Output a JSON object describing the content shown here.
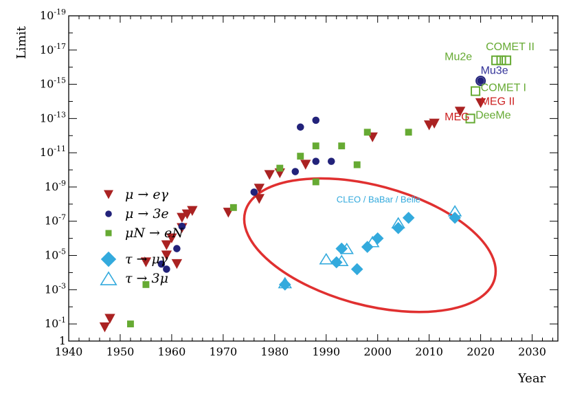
{
  "chart_data": {
    "type": "scatter",
    "title": "",
    "xlabel": "Year",
    "ylabel": "Limit",
    "xlim": [
      1940,
      2035
    ],
    "ylim_log10": [
      -19,
      0
    ],
    "y_scale": "log",
    "x_ticks": [
      1940,
      1950,
      1960,
      1970,
      1980,
      1990,
      2000,
      2010,
      2020,
      2030
    ],
    "x_tick_labels": [
      "1940",
      "1950",
      "1960",
      "1970",
      "1980",
      "1990",
      "2000",
      "2010",
      "2020",
      "2030"
    ],
    "y_ticks_log10": [
      0,
      -1,
      -3,
      -5,
      -7,
      -9,
      -11,
      -13,
      -15,
      -17,
      -19
    ],
    "y_tick_labels": [
      {
        "base": "1",
        "exp": ""
      },
      {
        "base": "10",
        "exp": "-1"
      },
      {
        "base": "10",
        "exp": "-3"
      },
      {
        "base": "10",
        "exp": "-5"
      },
      {
        "base": "10",
        "exp": "-7"
      },
      {
        "base": "10",
        "exp": "-9"
      },
      {
        "base": "10",
        "exp": "-11"
      },
      {
        "base": "10",
        "exp": "-13"
      },
      {
        "base": "10",
        "exp": "-15"
      },
      {
        "base": "10",
        "exp": "-17"
      },
      {
        "base": "10",
        "exp": "-19"
      }
    ],
    "grid": false,
    "legend_position": "left-middle",
    "series": [
      {
        "name": "μ → eγ",
        "marker": "triangle-down",
        "color": "#aa2222",
        "points": [
          [
            1947,
            -0.8
          ],
          [
            1948,
            -1.3
          ],
          [
            1955,
            -4.6
          ],
          [
            1959,
            -5.0
          ],
          [
            1959,
            -5.6
          ],
          [
            1960,
            -6.0
          ],
          [
            1961,
            -4.5
          ],
          [
            1962,
            -6.6
          ],
          [
            1962,
            -7.2
          ],
          [
            1963,
            -7.4
          ],
          [
            1964,
            -7.6
          ],
          [
            1971,
            -7.5
          ],
          [
            1977,
            -8.3
          ],
          [
            1977,
            -8.9
          ],
          [
            1979,
            -9.7
          ],
          [
            1981,
            -9.8
          ],
          [
            1986,
            -10.3
          ],
          [
            1999,
            -11.9
          ],
          [
            2010,
            -12.6
          ],
          [
            2011,
            -12.7
          ],
          [
            2016,
            -13.4
          ],
          [
            2020,
            -13.9
          ]
        ]
      },
      {
        "name": "μ → 3e",
        "marker": "circle",
        "color": "#22227a",
        "points": [
          [
            1958,
            -4.5
          ],
          [
            1959,
            -4.2
          ],
          [
            1961,
            -5.4
          ],
          [
            1962,
            -6.7
          ],
          [
            1976,
            -8.7
          ],
          [
            1984,
            -9.9
          ],
          [
            1985,
            -12.5
          ],
          [
            1988,
            -10.5
          ],
          [
            1988,
            -12.9
          ],
          [
            1991,
            -10.5
          ],
          [
            2020,
            -15.2
          ]
        ]
      },
      {
        "name": "μN → eN",
        "marker": "square",
        "color": "#66aa33",
        "points": [
          [
            1952,
            -1.0
          ],
          [
            1955,
            -3.3
          ],
          [
            1972,
            -7.8
          ],
          [
            1981,
            -10.1
          ],
          [
            1985,
            -10.8
          ],
          [
            1988,
            -9.3
          ],
          [
            1988,
            -11.4
          ],
          [
            1993,
            -11.4
          ],
          [
            1996,
            -10.3
          ],
          [
            1998,
            -12.2
          ],
          [
            2006,
            -12.2
          ]
        ]
      },
      {
        "name": "τ → μγ",
        "marker": "diamond",
        "color": "#33aadd",
        "points": [
          [
            1982,
            -3.3
          ],
          [
            1992,
            -4.6
          ],
          [
            1993,
            -5.4
          ],
          [
            1996,
            -4.2
          ],
          [
            1998,
            -5.5
          ],
          [
            2000,
            -6.0
          ],
          [
            2004,
            -6.6
          ],
          [
            2006,
            -7.2
          ],
          [
            2015,
            -7.2
          ]
        ]
      },
      {
        "name": "τ → 3μ",
        "marker": "triangle-up-open",
        "color": "#33aadd",
        "points": [
          [
            1982,
            -3.4
          ],
          [
            1990,
            -4.8
          ],
          [
            1993,
            -4.7
          ],
          [
            1994,
            -5.4
          ],
          [
            1999,
            -5.8
          ],
          [
            2004,
            -6.9
          ],
          [
            2015,
            -7.6
          ]
        ]
      },
      {
        "name": "",
        "marker": "square-open",
        "color": "#66aa33",
        "points": [
          [
            2018,
            -13.0
          ],
          [
            2019,
            -14.6
          ],
          [
            2023,
            -16.4
          ],
          [
            2024,
            -16.4
          ],
          [
            2025,
            -16.4
          ]
        ]
      }
    ],
    "annotations": [
      {
        "text": "MEG",
        "x": 2013,
        "y_log10": -12.9,
        "color": "#cc2222"
      },
      {
        "text": "DeeMe",
        "x": 2019,
        "y_log10": -13.0,
        "color": "#66aa33"
      },
      {
        "text": "MEG II",
        "x": 2020,
        "y_log10": -13.8,
        "color": "#cc2222"
      },
      {
        "text": "COMET I",
        "x": 2020,
        "y_log10": -14.6,
        "color": "#66aa33"
      },
      {
        "text": "Mu3e",
        "x": 2020,
        "y_log10": -15.6,
        "color": "#333399"
      },
      {
        "text": "Mu2e",
        "x": 2013,
        "y_log10": -16.4,
        "color": "#66aa33"
      },
      {
        "text": "COMET II",
        "x": 2021,
        "y_log10": -17.0,
        "color": "#66aa33"
      },
      {
        "text": "CLEO / BaBar / Belle",
        "x": 1992,
        "y_log10": -8.1,
        "color": "#33aadd"
      }
    ],
    "highlight_ellipse": {
      "cx": 1998.5,
      "cy_log10": -5.6,
      "color": "#e03030"
    },
    "legend_entries": [
      {
        "label": "μ → eγ",
        "marker": "triangle-down",
        "color": "#aa2222"
      },
      {
        "label": "μ → 3e",
        "marker": "circle",
        "color": "#22227a"
      },
      {
        "label": "μN → eN",
        "marker": "square",
        "color": "#66aa33"
      },
      {
        "label": "τ → μγ",
        "marker": "diamond",
        "color": "#33aadd"
      },
      {
        "label": "τ → 3μ",
        "marker": "triangle-up-open",
        "color": "#33aadd"
      }
    ]
  }
}
